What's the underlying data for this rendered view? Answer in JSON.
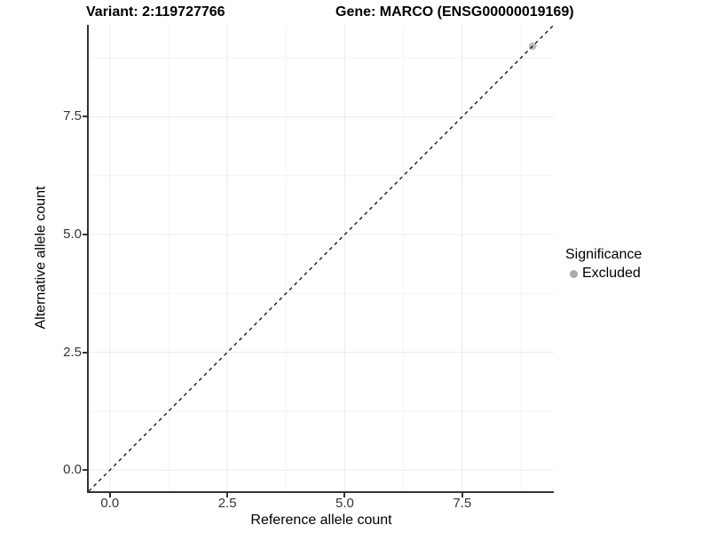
{
  "titles": {
    "variant": "Variant: 2:119727766",
    "gene": "Gene: MARCO (ENSG00000019169)"
  },
  "chart_data": {
    "type": "scatter",
    "title": "Variant: 2:119727766  /  Gene: MARCO (ENSG00000019169)",
    "xlabel": "Reference allele count",
    "ylabel": "Alternative allele count",
    "xlim": [
      -0.45,
      9.45
    ],
    "ylim": [
      -0.45,
      9.45
    ],
    "x_major_ticks": [
      0.0,
      2.5,
      5.0,
      7.5
    ],
    "y_major_ticks": [
      0.0,
      2.5,
      5.0,
      7.5
    ],
    "x_minor_ticks": [
      1.25,
      3.75,
      6.25,
      8.75
    ],
    "y_minor_ticks": [
      1.25,
      3.75,
      6.25,
      8.75
    ],
    "grid": "major+minor",
    "points": [
      {
        "x": 9,
        "y": 9,
        "significance": "Excluded"
      }
    ],
    "identity_line": {
      "slope": 1,
      "intercept": 0,
      "style": "dashed",
      "color": "#1a1a1a"
    },
    "legend": {
      "title": "Significance",
      "position": "right",
      "items": [
        {
          "label": "Excluded",
          "color": "#aaaaaa"
        }
      ]
    }
  }
}
